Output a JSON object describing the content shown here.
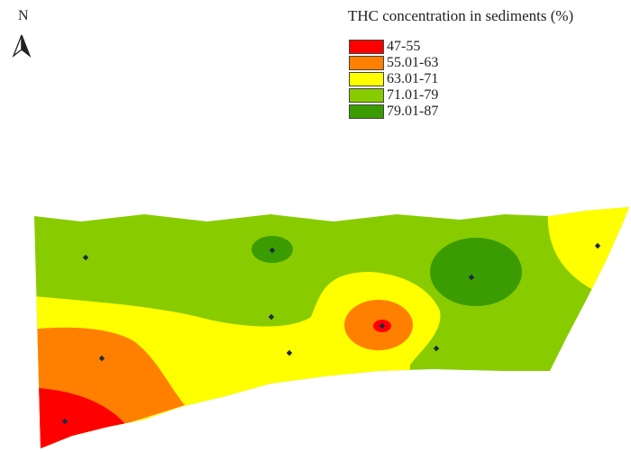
{
  "north_label": "N",
  "legend": {
    "title": "THC concentration in sediments (%)",
    "items": [
      {
        "label": "47-55",
        "color": "#ff0000"
      },
      {
        "label": "55.01-63",
        "color": "#ff8000"
      },
      {
        "label": "63.01-71",
        "color": "#ffff00"
      },
      {
        "label": "71.01-79",
        "color": "#88cc00"
      },
      {
        "label": "79.01-87",
        "color": "#3a9c00"
      }
    ]
  },
  "sample_points": [
    {
      "id": "S1"
    },
    {
      "id": "S2"
    },
    {
      "id": "S3"
    },
    {
      "id": "S4"
    },
    {
      "id": "S5"
    },
    {
      "id": "S6"
    },
    {
      "id": "S7"
    },
    {
      "id": "S8"
    },
    {
      "id": "S9"
    },
    {
      "id": "S10"
    }
  ]
}
